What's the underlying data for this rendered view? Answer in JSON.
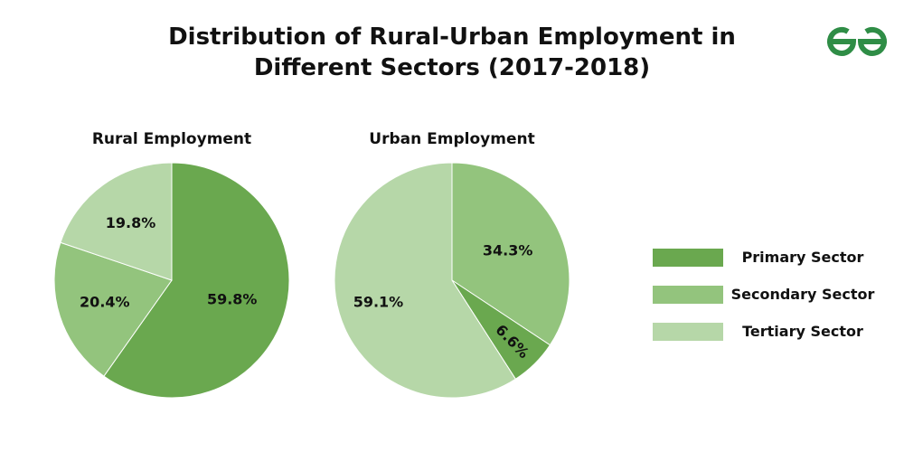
{
  "title_lines": [
    "Distribution of Rural-Urban Employment in",
    "Different Sectors (2017-2018)"
  ],
  "logo": {
    "icon": "geeksforgeeks-logo-icon",
    "color": "#2f8d46"
  },
  "sectors": [
    {
      "name": "Primary Sector",
      "color": "#6aa84f"
    },
    {
      "name": "Secondary Sector",
      "color": "#93c47d"
    },
    {
      "name": "Tertiary Sector",
      "color": "#b6d7a8"
    }
  ],
  "chart_data": [
    {
      "type": "pie",
      "title": "Rural Employment",
      "labels": [
        "Primary Sector",
        "Secondary Sector",
        "Tertiary Sector"
      ],
      "values": [
        59.8,
        20.4,
        19.8
      ],
      "value_labels": [
        "59.8%",
        "20.4%",
        "19.8%"
      ],
      "start_angle": "12 o'clock",
      "direction": "clockwise",
      "legend": "right"
    },
    {
      "type": "pie",
      "title": "Urban Employment",
      "labels": [
        "Secondary Sector",
        "Primary Sector",
        "Tertiary Sector"
      ],
      "values": [
        34.3,
        6.6,
        59.1
      ],
      "value_labels": [
        "34.3%",
        "6.6%",
        "59.1%"
      ],
      "start_angle": "12 o'clock",
      "direction": "clockwise",
      "legend": "right"
    }
  ]
}
